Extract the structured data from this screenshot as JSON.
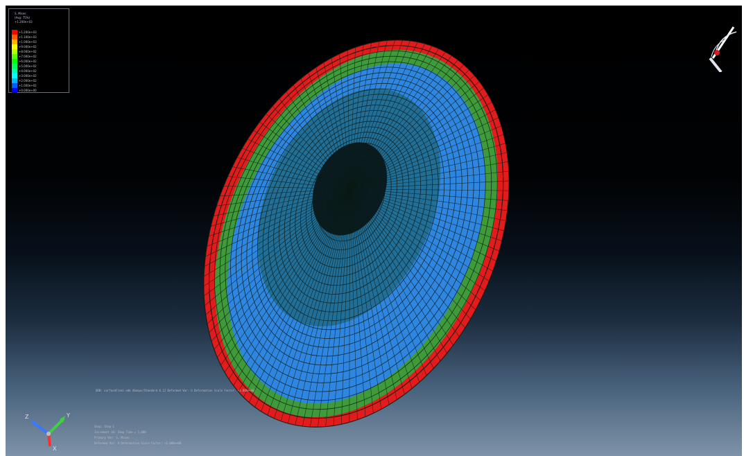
{
  "viewport": {
    "background": "gradient-black-to-steel"
  },
  "legend": {
    "title_lines": [
      "S, Mises",
      "(Avg: 75%)",
      "+1.200e+03"
    ],
    "values": [
      "+1.200e+03",
      "+1.100e+03",
      "+1.000e+03",
      "+9.000e+02",
      "+8.000e+02",
      "+7.000e+02",
      "+6.000e+02",
      "+5.000e+02",
      "+4.000e+02",
      "+3.000e+02",
      "+2.000e+02",
      "+1.000e+02",
      "+0.000e+00"
    ],
    "colors": [
      "#ff0000",
      "#ff5a00",
      "#ffb400",
      "#ffff00",
      "#b4ff00",
      "#5aff00",
      "#00ff00",
      "#00ff5a",
      "#00ffb4",
      "#00ffff",
      "#00b4ff",
      "#005aff",
      "#0000ff"
    ]
  },
  "model": {
    "colors": {
      "rim": "#e21c1c",
      "band": "#3f9a3a",
      "outer": "#2f86e0",
      "middle": "#1f6a88",
      "core": "#0a1c22",
      "mesh": "#0a1a14"
    }
  },
  "annotations": {
    "deformed_var": "ODB: surfaceFinal.odb    Abaqus/Standard 6.12    Deformed Var: U   Deformation Scale Factor: +1.000e+00",
    "step": "Step: Step-1",
    "increment": "Increment    10: Step Time =    1.000",
    "primary_var": "Primary Var: S, Mises",
    "deformed": "Deformed Var: U   Deformation Scale Factor: +1.000e+00"
  },
  "triad": {
    "axes": [
      "Y",
      "Z",
      "X"
    ],
    "colors": [
      "#3cd23c",
      "#3c78ff",
      "#ff3030"
    ]
  }
}
